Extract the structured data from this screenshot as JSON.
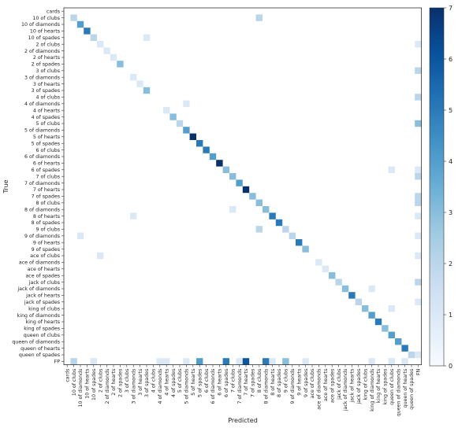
{
  "chart_data": {
    "type": "heatmap",
    "xlabel": "Predicted",
    "ylabel": "True",
    "colormap": "Blues",
    "vmin": 0,
    "vmax": 7,
    "colorbar_ticks": [
      "0",
      "1",
      "2",
      "3",
      "4",
      "5",
      "6",
      "7"
    ],
    "y_labels": [
      "cards",
      "10 of clubs",
      "10 of diamonds",
      "10 of hearts",
      "10 of spades",
      "2 of clubs",
      "2 of diamonds",
      "2 of hearts",
      "2 of spades",
      "3 of clubs",
      "3 of diamonds",
      "3 of hearts",
      "3 of spades",
      "4 of clubs",
      "4 of diamonds",
      "4 of hearts",
      "4 of spades",
      "5 of clubs",
      "5 of diamonds",
      "5 of hearts",
      "5 of spades",
      "6 of clubs",
      "6 of diamonds",
      "6 of hearts",
      "6 of spades",
      "7 of clubs",
      "7 of diamonds",
      "7 of hearts",
      "7 of spades",
      "8 of clubs",
      "8 of diamonds",
      "8 of hearts",
      "8 of spades",
      "9 of clubs",
      "9 of diamonds",
      "9 of hearts",
      "9 of spades",
      "ace of clubs",
      "ace of diamonds",
      "ace of hearts",
      "ace of spades",
      "jack  of clubs",
      "jack of diamonds",
      "jack of hearts",
      "jack of spades",
      "king of clubs",
      "king of diamonds",
      "king of hearts",
      "king of spades",
      "queen of clubs",
      "queen of diamonds",
      "queen of hearts",
      "queen of spades",
      "FP"
    ],
    "x_labels": [
      "cards",
      "10 of clubs",
      "10 of diamonds",
      "10 of hearts",
      "10 of spades",
      "2 of clubs",
      "2 of diamonds",
      "2 of hearts",
      "2 of spades",
      "3 of clubs",
      "3 of diamonds",
      "3 of hearts",
      "3 of spades",
      "4 of clubs",
      "4 of diamonds",
      "4 of hearts",
      "4 of spades",
      "5 of clubs",
      "5 of diamonds",
      "5 of hearts",
      "5 of spades",
      "6 of clubs",
      "6 of diamonds",
      "6 of hearts",
      "6 of spades",
      "7 of clubs",
      "7 of diamonds",
      "7 of hearts",
      "7 of spades",
      "8 of clubs",
      "8 of diamonds",
      "8 of hearts",
      "8 of spades",
      "9 of clubs",
      "9 of diamonds",
      "9 of hearts",
      "9 of spades",
      "ace of clubs",
      "ace of diamonds",
      "ace of hearts",
      "ace of spades",
      "jack  of clubs",
      "jack of diamonds",
      "jack of hearts",
      "jack of spades",
      "king of clubs",
      "king of diamonds",
      "king of hearts",
      "king of spades",
      "queen of clubs",
      "queen of diamonds",
      "queen of hearts",
      "queen of spades",
      "FN"
    ],
    "cells_true_pred_value": [
      [
        1,
        1,
        2
      ],
      [
        1,
        29,
        2
      ],
      [
        2,
        2,
        4
      ],
      [
        3,
        3,
        5
      ],
      [
        4,
        4,
        2
      ],
      [
        4,
        12,
        1
      ],
      [
        5,
        5,
        1
      ],
      [
        5,
        53,
        1
      ],
      [
        6,
        6,
        1
      ],
      [
        7,
        7,
        1
      ],
      [
        8,
        8,
        3
      ],
      [
        9,
        53,
        2
      ],
      [
        10,
        10,
        1
      ],
      [
        11,
        11,
        1
      ],
      [
        12,
        12,
        3
      ],
      [
        13,
        53,
        2
      ],
      [
        14,
        18,
        1
      ],
      [
        15,
        15,
        1
      ],
      [
        16,
        16,
        3
      ],
      [
        17,
        17,
        2
      ],
      [
        17,
        53,
        3
      ],
      [
        18,
        18,
        4
      ],
      [
        19,
        19,
        7
      ],
      [
        20,
        20,
        5
      ],
      [
        21,
        21,
        5
      ],
      [
        22,
        22,
        4
      ],
      [
        23,
        23,
        7
      ],
      [
        24,
        24,
        3
      ],
      [
        24,
        49,
        1
      ],
      [
        24,
        53,
        1
      ],
      [
        25,
        25,
        3
      ],
      [
        25,
        53,
        2
      ],
      [
        26,
        26,
        4
      ],
      [
        27,
        27,
        7
      ],
      [
        28,
        28,
        3
      ],
      [
        28,
        53,
        2
      ],
      [
        29,
        29,
        3
      ],
      [
        29,
        53,
        2
      ],
      [
        30,
        30,
        3
      ],
      [
        30,
        25,
        1
      ],
      [
        31,
        31,
        5
      ],
      [
        31,
        10,
        1
      ],
      [
        31,
        53,
        1
      ],
      [
        32,
        32,
        5
      ],
      [
        33,
        29,
        2
      ],
      [
        33,
        33,
        2
      ],
      [
        34,
        34,
        2
      ],
      [
        34,
        2,
        1
      ],
      [
        34,
        53,
        1
      ],
      [
        35,
        35,
        5
      ],
      [
        36,
        36,
        3
      ],
      [
        37,
        5,
        1
      ],
      [
        37,
        53,
        1
      ],
      [
        38,
        38,
        1
      ],
      [
        39,
        39,
        1
      ],
      [
        40,
        40,
        3
      ],
      [
        41,
        41,
        2
      ],
      [
        41,
        53,
        2
      ],
      [
        42,
        42,
        3
      ],
      [
        42,
        46,
        1
      ],
      [
        43,
        43,
        5
      ],
      [
        44,
        44,
        2
      ],
      [
        44,
        53,
        1
      ],
      [
        45,
        45,
        3
      ],
      [
        45,
        49,
        1
      ],
      [
        46,
        46,
        4
      ],
      [
        47,
        47,
        5
      ],
      [
        48,
        48,
        3
      ],
      [
        49,
        49,
        4
      ],
      [
        50,
        50,
        4
      ],
      [
        51,
        51,
        5
      ],
      [
        52,
        52,
        2
      ],
      [
        52,
        53,
        1
      ],
      [
        53,
        1,
        2
      ],
      [
        53,
        4,
        1
      ],
      [
        53,
        14,
        1
      ],
      [
        53,
        15,
        1
      ],
      [
        53,
        18,
        1
      ],
      [
        53,
        20,
        4
      ],
      [
        53,
        24,
        5
      ],
      [
        53,
        26,
        1
      ],
      [
        53,
        27,
        6
      ],
      [
        53,
        30,
        5
      ],
      [
        53,
        31,
        1
      ],
      [
        53,
        33,
        3
      ],
      [
        53,
        36,
        1
      ],
      [
        53,
        46,
        1
      ],
      [
        53,
        49,
        1
      ],
      [
        53,
        51,
        1
      ]
    ]
  }
}
